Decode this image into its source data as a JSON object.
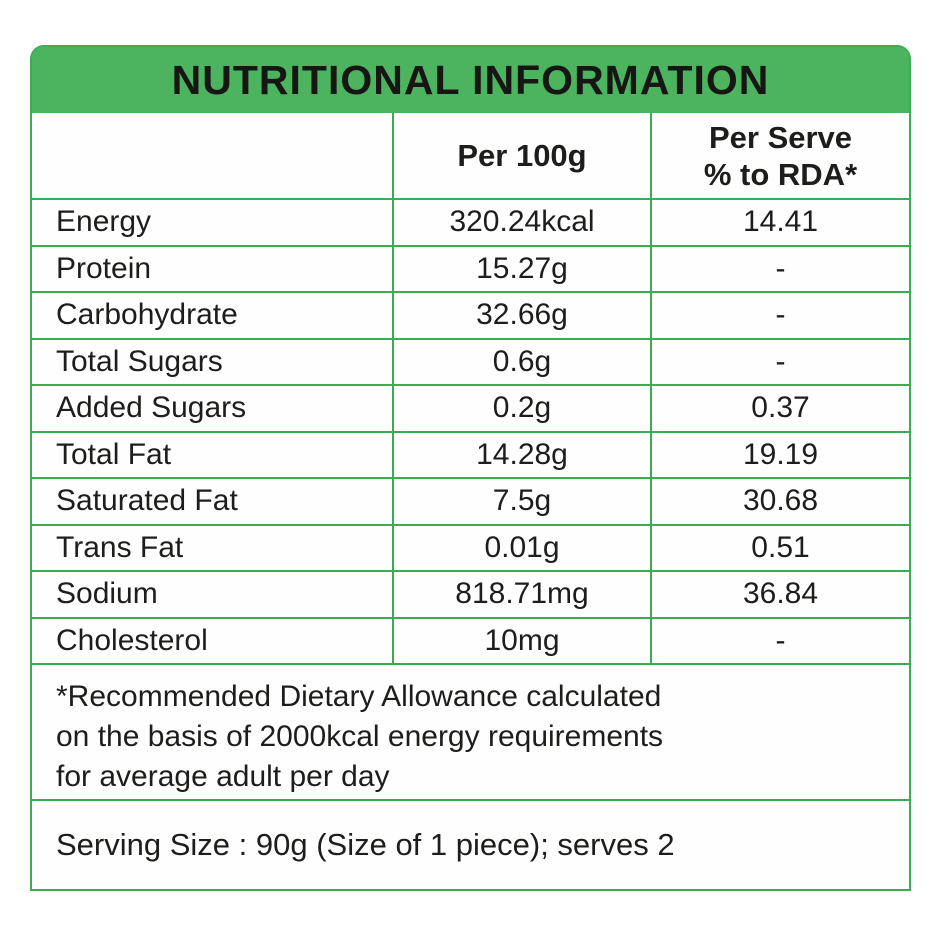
{
  "title": "NUTRITIONAL INFORMATION",
  "colors": {
    "band_green": "#4cb45f",
    "grid_green": "#3cac52",
    "text": "#1d1d1b",
    "background": "#ffffff"
  },
  "table": {
    "header": {
      "col1": "",
      "col2": "Per 100g",
      "col3_line1": "Per Serve",
      "col3_line2": "% to RDA*"
    },
    "rows": [
      {
        "label": "Energy",
        "per_100g": "320.24kcal",
        "per_serve_rda": "14.41"
      },
      {
        "label": "Protein",
        "per_100g": "15.27g",
        "per_serve_rda": "-"
      },
      {
        "label": "Carbohydrate",
        "per_100g": "32.66g",
        "per_serve_rda": "-"
      },
      {
        "label": "Total Sugars",
        "per_100g": "0.6g",
        "per_serve_rda": "-"
      },
      {
        "label": "Added Sugars",
        "per_100g": "0.2g",
        "per_serve_rda": "0.37"
      },
      {
        "label": "Total Fat",
        "per_100g": "14.28g",
        "per_serve_rda": "19.19"
      },
      {
        "label": "Saturated Fat",
        "per_100g": "7.5g",
        "per_serve_rda": "30.68"
      },
      {
        "label": "Trans Fat",
        "per_100g": "0.01g",
        "per_serve_rda": "0.51"
      },
      {
        "label": "Sodium",
        "per_100g": "818.71mg",
        "per_serve_rda": "36.84"
      },
      {
        "label": "Cholesterol",
        "per_100g": "10mg",
        "per_serve_rda": "-"
      }
    ]
  },
  "footnote": {
    "line1": "*Recommended Dietary Allowance calculated",
    "line2": "on the basis of 2000kcal energy requirements",
    "line3": "for average adult per day"
  },
  "serving_size": "Serving Size : 90g (Size of 1 piece); serves 2"
}
